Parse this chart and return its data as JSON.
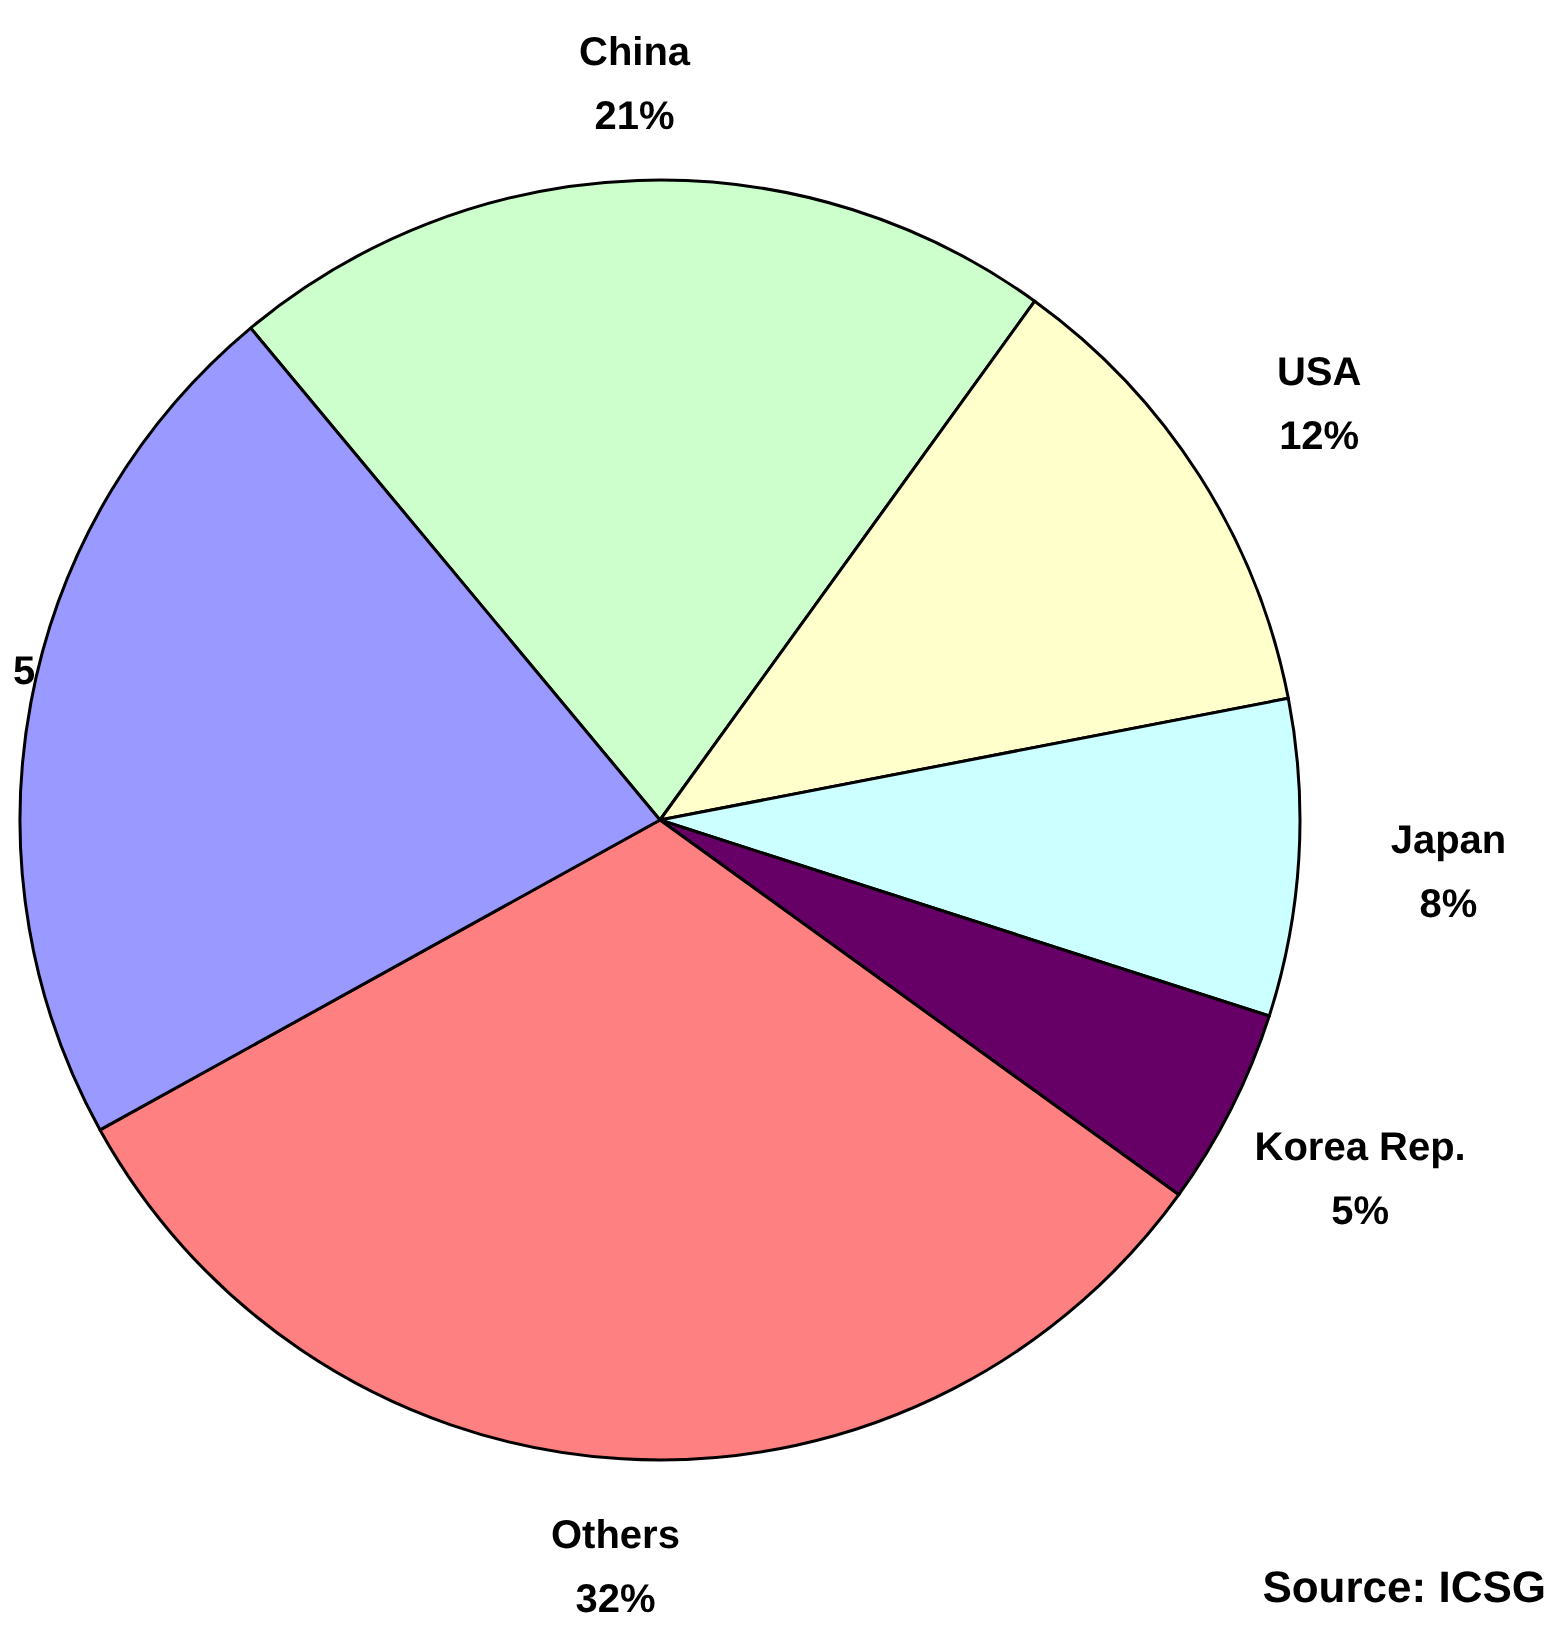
{
  "chart_data": {
    "type": "pie",
    "categories": [
      "China",
      "USA",
      "Japan",
      "Korea Rep.",
      "Others",
      "5"
    ],
    "values": [
      21,
      12,
      8,
      5,
      32,
      22
    ],
    "colors": [
      "#ccffcc",
      "#ffffcc",
      "#ccffff",
      "#660066",
      "#ff8080",
      "#9999ff"
    ],
    "value_labels": [
      "21%",
      "12%",
      "8%",
      "5%",
      "32%",
      null
    ],
    "annotations": [
      "Source: ICSG"
    ]
  }
}
